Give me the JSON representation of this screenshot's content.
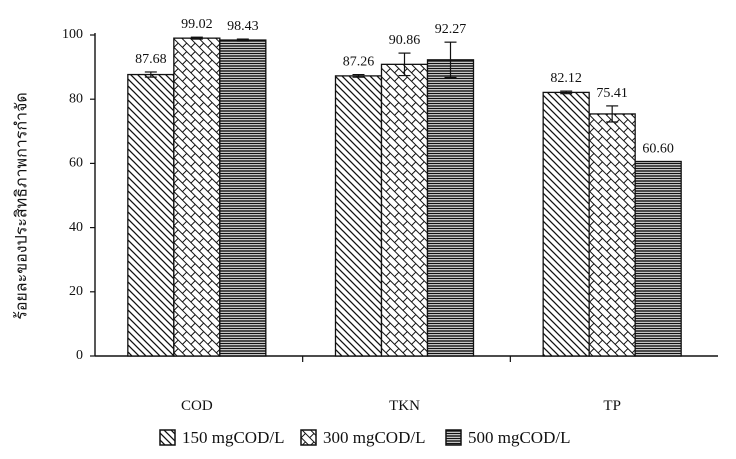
{
  "chart_data": {
    "type": "bar",
    "title": "",
    "xlabel": "",
    "ylabel": "ร้อยละของประสิทธิภาพการกำจัด",
    "ylim": [
      0,
      100
    ],
    "yticks": [
      0,
      20,
      40,
      60,
      80,
      100
    ],
    "categories": [
      "COD",
      "TKN",
      "TP"
    ],
    "series": [
      {
        "name": "150 mgCOD/L",
        "pattern": "diagonal-down",
        "values": [
          87.68,
          87.26,
          82.12
        ],
        "errors": [
          0.8,
          0.4,
          0.4
        ],
        "labels": [
          "87.68",
          "87.26",
          "82.12"
        ]
      },
      {
        "name": "300 mgCOD/L",
        "pattern": "brick",
        "values": [
          99.02,
          90.86,
          75.41
        ],
        "errors": [
          0.3,
          3.5,
          2.5
        ],
        "labels": [
          "99.02",
          "90.86",
          "75.41"
        ]
      },
      {
        "name": "500 mgCOD/L",
        "pattern": "horizontal",
        "values": [
          98.43,
          92.27,
          60.6
        ],
        "errors": [
          0.3,
          5.5,
          0
        ],
        "labels": [
          "98.43",
          "92.27",
          "60.60"
        ]
      }
    ],
    "legend_position": "bottom",
    "grid": false,
    "colors": {
      "stroke": "#111111",
      "fill": "#ffffff"
    }
  }
}
